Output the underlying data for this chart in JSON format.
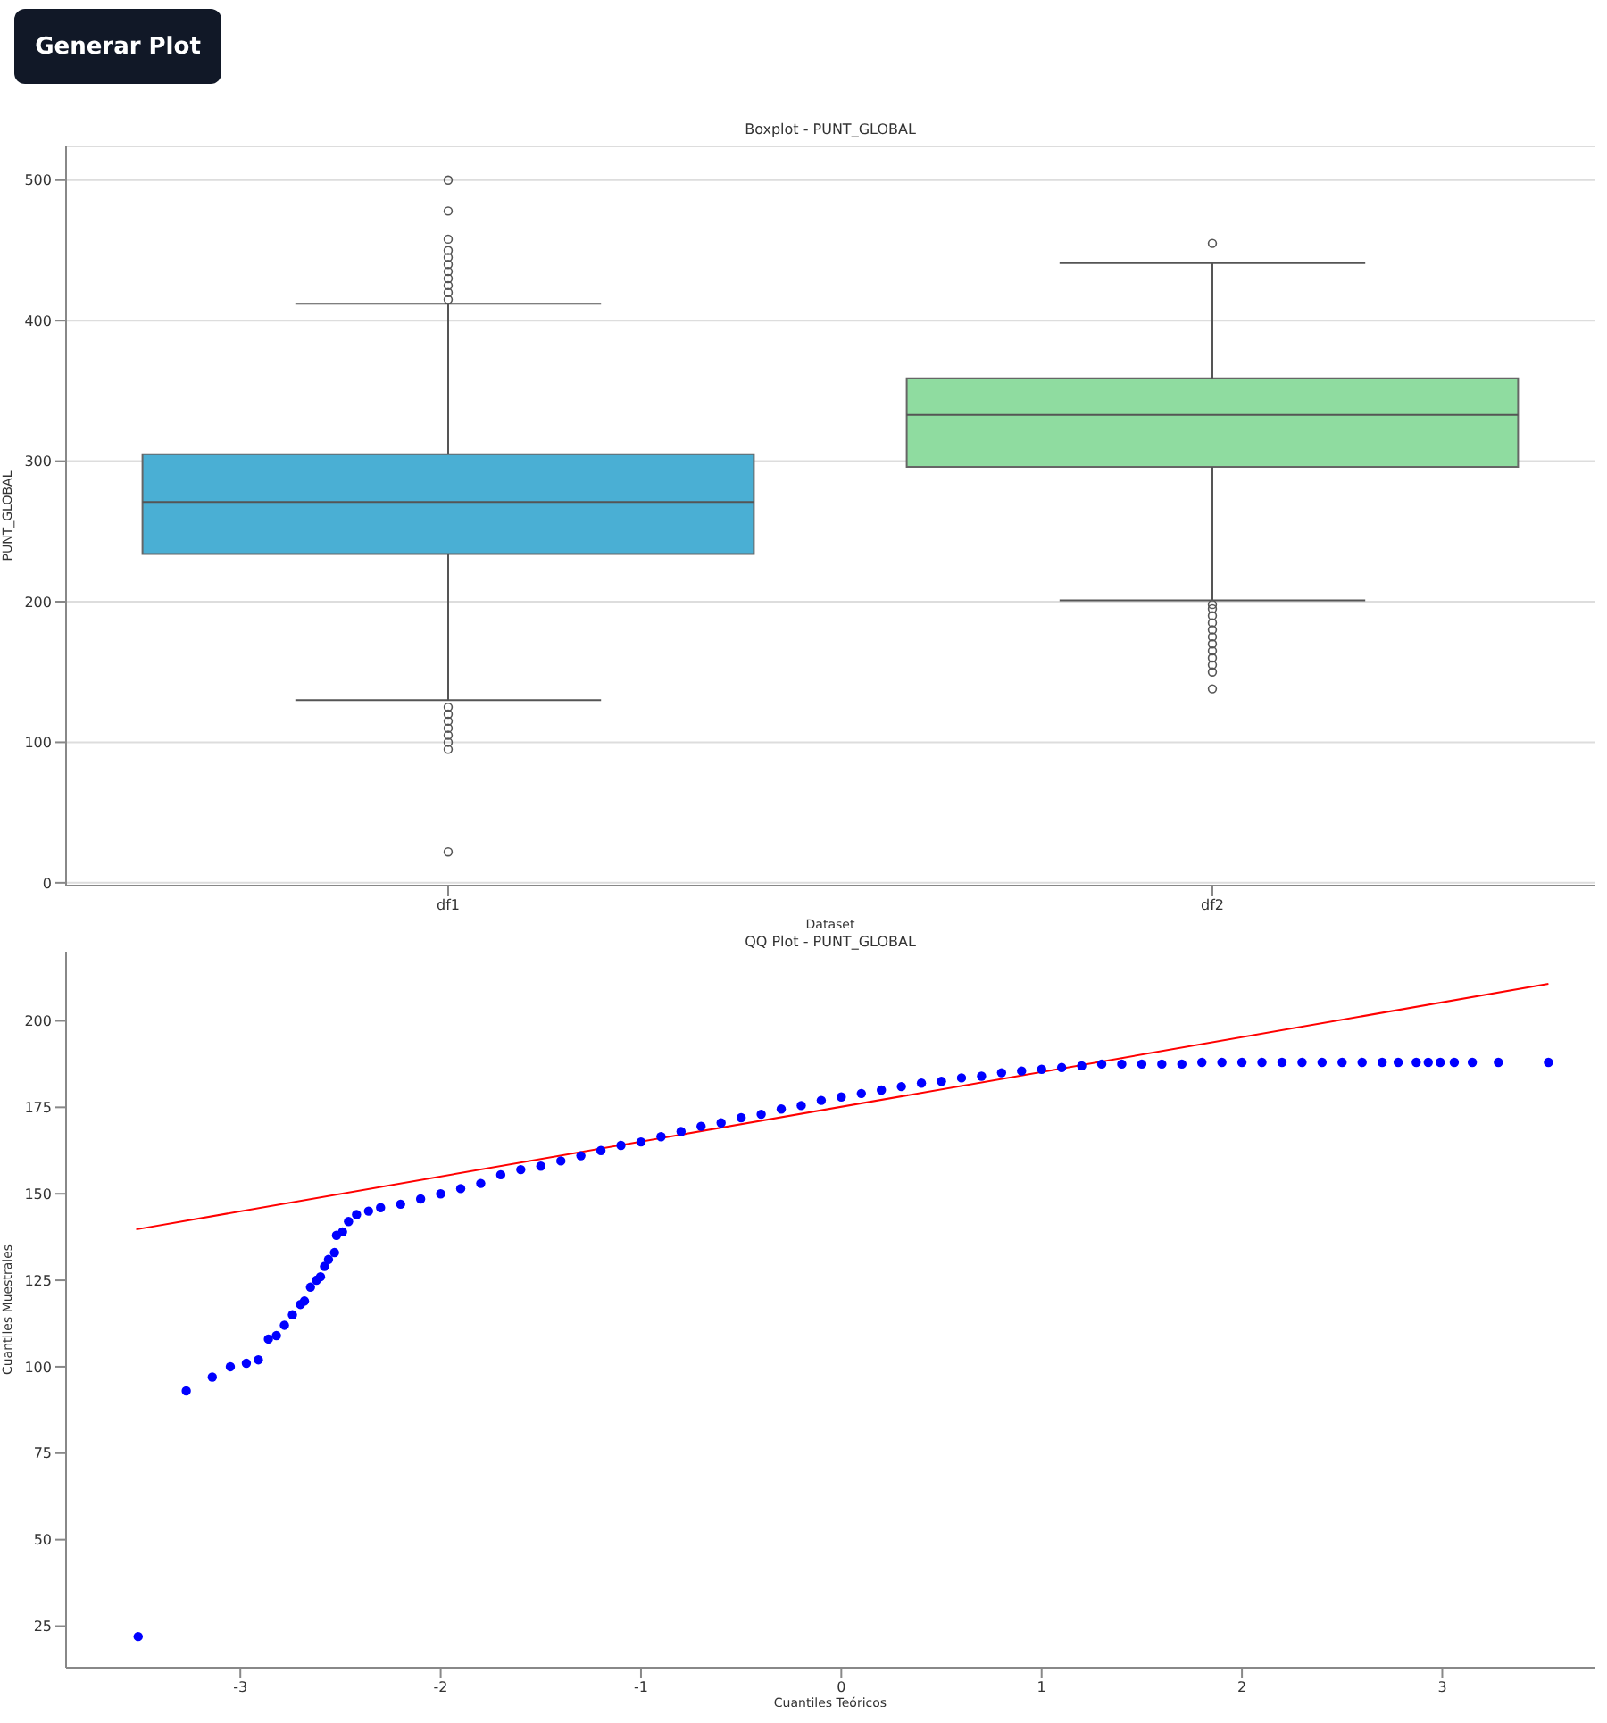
{
  "chart_data": [
    {
      "type": "box",
      "title": "Boxplot - PUNT_GLOBAL",
      "xlabel": "Dataset",
      "ylabel": "PUNT_GLOBAL",
      "annotations": [
        "Generar Plot"
      ],
      "categories": [
        "df1",
        "df2"
      ],
      "colors": [
        "#4aafd4",
        "#8fdca0"
      ],
      "ylim": [
        -2,
        524
      ],
      "yticks": [
        0,
        100,
        200,
        300,
        400,
        500
      ],
      "grid": "y",
      "boxes": [
        {
          "low": 130,
          "q1": 234,
          "median": 271,
          "q3": 305,
          "high": 412,
          "outliers": [
            500,
            478,
            458,
            450,
            445,
            440,
            435,
            430,
            425,
            420,
            415,
            125,
            120,
            115,
            110,
            105,
            100,
            95,
            22
          ]
        },
        {
          "low": 201,
          "q1": 296,
          "median": 333,
          "q3": 359,
          "high": 441,
          "outliers": [
            455,
            198,
            195,
            190,
            185,
            180,
            175,
            170,
            165,
            160,
            155,
            150,
            138
          ]
        }
      ]
    },
    {
      "type": "scatter",
      "title": "QQ Plot - PUNT_GLOBAL",
      "xlabel": "Cuantiles Teóricos",
      "ylabel": "Cuantiles Muestrales",
      "xlim": [
        -3.87,
        3.76
      ],
      "ylim": [
        13,
        220
      ],
      "xticks": [
        -3,
        -2,
        -1,
        0,
        1,
        2,
        3
      ],
      "yticks": [
        25,
        50,
        75,
        100,
        125,
        150,
        175,
        200
      ],
      "series": [
        {
          "type": "scatter",
          "color": "#0000ff",
          "marker": "circle",
          "x": [
            -3.51,
            -3.27,
            -3.14,
            -3.05,
            -2.97,
            -2.91,
            -2.86,
            -2.82,
            -2.78,
            -2.74,
            -2.7,
            -2.68,
            -2.65,
            -2.62,
            -2.6,
            -2.58,
            -2.56,
            -2.53,
            -2.52,
            -2.49,
            -2.46,
            -2.42,
            -2.36,
            -2.3,
            -2.2,
            -2.1,
            -2.0,
            -1.9,
            -1.8,
            -1.7,
            -1.6,
            -1.5,
            -1.4,
            -1.3,
            -1.2,
            -1.1,
            -1.0,
            -0.9,
            -0.8,
            -0.7,
            -0.6,
            -0.5,
            -0.4,
            -0.3,
            -0.2,
            -0.1,
            0,
            0.1,
            0.2,
            0.3,
            0.4,
            0.5,
            0.6,
            0.7,
            0.8,
            0.9,
            1.0,
            1.1,
            1.2,
            1.3,
            1.4,
            1.5,
            1.6,
            1.7,
            1.8,
            1.9,
            2.0,
            2.1,
            2.2,
            2.3,
            2.4,
            2.5,
            2.6,
            2.7,
            2.78,
            2.87,
            2.93,
            2.99,
            3.06,
            3.15,
            3.28,
            3.53
          ],
          "values": [
            22,
            93,
            97,
            100,
            101,
            102,
            108,
            109,
            112,
            115,
            118,
            119,
            123,
            125,
            126,
            129,
            131,
            133,
            138,
            139,
            142,
            144,
            145,
            146,
            147,
            148.5,
            150,
            151.5,
            153,
            155.5,
            157,
            158,
            159.5,
            161,
            162.5,
            164,
            165,
            166.5,
            168,
            169.5,
            170.5,
            172,
            173,
            174.5,
            175.5,
            177,
            178,
            179,
            180,
            181,
            182,
            182.5,
            183.5,
            184,
            185,
            185.5,
            186,
            186.5,
            187,
            187.5,
            187.5,
            187.5,
            187.5,
            187.5,
            188,
            188,
            188,
            188,
            188,
            188,
            188,
            188,
            188,
            188,
            188,
            188,
            188,
            188,
            188,
            188,
            188,
            188
          ]
        },
        {
          "type": "line",
          "color": "#ff0000",
          "x": [
            -3.52,
            3.53
          ],
          "values": [
            139.7,
            210.7
          ]
        }
      ]
    }
  ]
}
